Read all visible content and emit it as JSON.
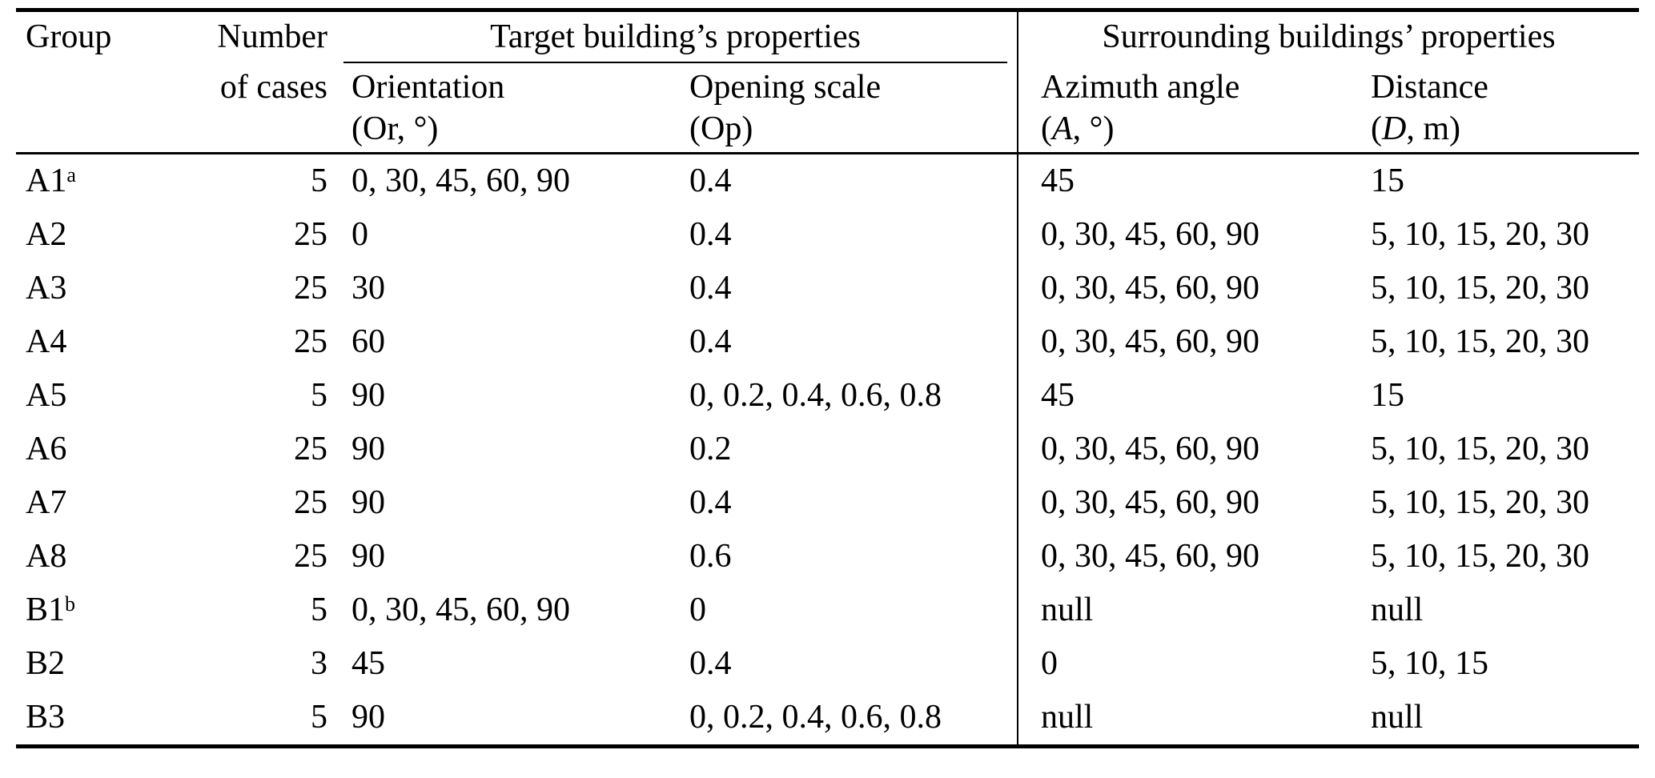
{
  "table": {
    "header": {
      "group": "Group",
      "number": "Number",
      "of_cases": "of cases",
      "target_spanner": "Target building’s properties",
      "surround_spanner": "Surrounding buildings’ properties",
      "orientation_l1": "Orientation",
      "orientation_l2": "(Or, °)",
      "opening_l1": "Opening scale",
      "opening_l2": "(Op)",
      "azimuth_l1": "Azimuth angle",
      "azimuth_open": "(",
      "azimuth_var": "A",
      "azimuth_rest": ", °)",
      "distance_l1": "Distance",
      "distance_open": "(",
      "distance_var": "D",
      "distance_rest": ", m)"
    },
    "rows": [
      {
        "group": "A1",
        "sup": "a",
        "cases": "5",
        "orientation": "0, 30, 45, 60, 90",
        "opening": "0.4",
        "azimuth": "45",
        "distance": "15"
      },
      {
        "group": "A2",
        "sup": "",
        "cases": "25",
        "orientation": "0",
        "opening": "0.4",
        "azimuth": "0, 30, 45, 60, 90",
        "distance": "5, 10, 15, 20, 30"
      },
      {
        "group": "A3",
        "sup": "",
        "cases": "25",
        "orientation": "30",
        "opening": "0.4",
        "azimuth": "0, 30, 45, 60, 90",
        "distance": "5, 10, 15, 20, 30"
      },
      {
        "group": "A4",
        "sup": "",
        "cases": "25",
        "orientation": "60",
        "opening": "0.4",
        "azimuth": "0, 30, 45, 60, 90",
        "distance": "5, 10, 15, 20, 30"
      },
      {
        "group": "A5",
        "sup": "",
        "cases": "5",
        "orientation": "90",
        "opening": "0, 0.2, 0.4, 0.6, 0.8",
        "azimuth": "45",
        "distance": "15"
      },
      {
        "group": "A6",
        "sup": "",
        "cases": "25",
        "orientation": "90",
        "opening": "0.2",
        "azimuth": "0, 30, 45, 60, 90",
        "distance": "5, 10, 15, 20, 30"
      },
      {
        "group": "A7",
        "sup": "",
        "cases": "25",
        "orientation": "90",
        "opening": "0.4",
        "azimuth": "0, 30, 45, 60, 90",
        "distance": "5, 10, 15, 20, 30"
      },
      {
        "group": "A8",
        "sup": "",
        "cases": "25",
        "orientation": "90",
        "opening": "0.6",
        "azimuth": "0, 30, 45, 60, 90",
        "distance": "5, 10, 15, 20, 30"
      },
      {
        "group": "B1",
        "sup": "b",
        "cases": "5",
        "orientation": "0, 30, 45, 60, 90",
        "opening": "0",
        "azimuth": "null",
        "distance": "null"
      },
      {
        "group": "B2",
        "sup": "",
        "cases": "3",
        "orientation": "45",
        "opening": "0.4",
        "azimuth": "0",
        "distance": "5, 10, 15"
      },
      {
        "group": "B3",
        "sup": "",
        "cases": "5",
        "orientation": "90",
        "opening": "0, 0.2, 0.4, 0.6, 0.8",
        "azimuth": "null",
        "distance": "null"
      }
    ]
  }
}
